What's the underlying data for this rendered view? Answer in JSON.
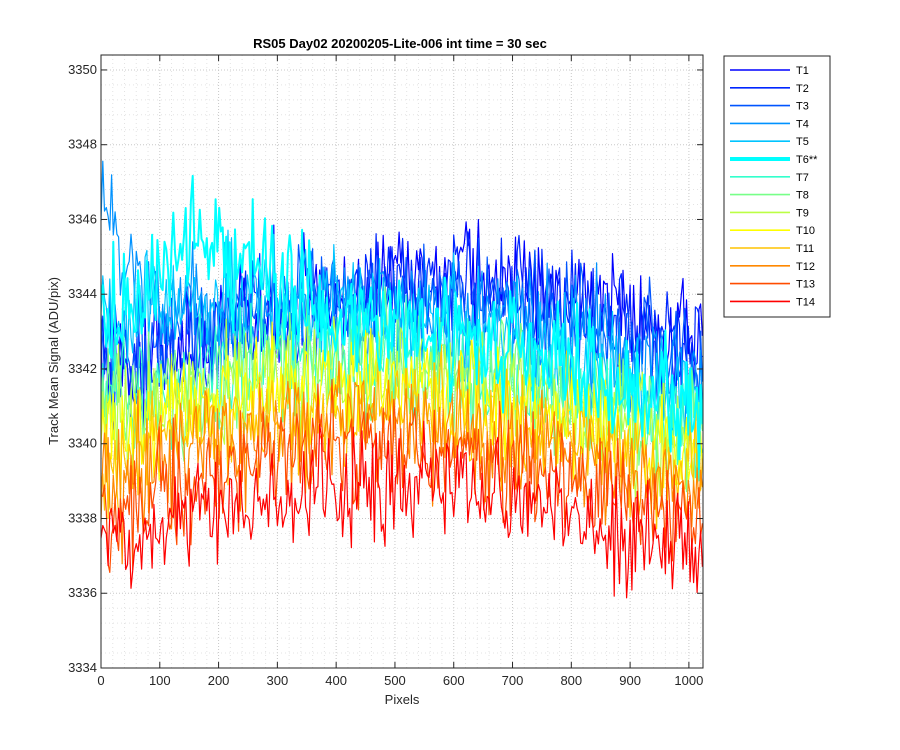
{
  "chart_data": {
    "type": "line",
    "title": "RS05 Day02 20200205-Lite-006 int time = 30 sec",
    "xlabel": "Pixels",
    "ylabel": "Track Mean Signal (ADU/pix)",
    "xlim": [
      0,
      1024
    ],
    "ylim": [
      3334,
      3350.4
    ],
    "xticks": [
      0,
      100,
      200,
      300,
      400,
      500,
      600,
      700,
      800,
      900,
      1000
    ],
    "yticks": [
      3334,
      3336,
      3338,
      3340,
      3342,
      3344,
      3346,
      3348,
      3350
    ],
    "grid": "on (dotted major and minor)",
    "legend_location": "outside right",
    "series": [
      {
        "name": "T1",
        "color": "#0000ff",
        "mean_profile": [
          {
            "x": 0,
            "y": 3341.8
          },
          {
            "x": 100,
            "y": 3342.3
          },
          {
            "x": 200,
            "y": 3343.0
          },
          {
            "x": 300,
            "y": 3343.6
          },
          {
            "x": 400,
            "y": 3344.0
          },
          {
            "x": 500,
            "y": 3344.3
          },
          {
            "x": 600,
            "y": 3344.4
          },
          {
            "x": 700,
            "y": 3344.3
          },
          {
            "x": 800,
            "y": 3344.0
          },
          {
            "x": 900,
            "y": 3343.5
          },
          {
            "x": 1024,
            "y": 3342.9
          }
        ]
      },
      {
        "name": "T2",
        "color": "#0026ff",
        "mean_profile": [
          {
            "x": 0,
            "y": 3341.9
          },
          {
            "x": 100,
            "y": 3342.4
          },
          {
            "x": 200,
            "y": 3343.0
          },
          {
            "x": 300,
            "y": 3343.5
          },
          {
            "x": 400,
            "y": 3343.9
          },
          {
            "x": 500,
            "y": 3344.1
          },
          {
            "x": 600,
            "y": 3344.2
          },
          {
            "x": 700,
            "y": 3344.0
          },
          {
            "x": 800,
            "y": 3343.7
          },
          {
            "x": 900,
            "y": 3343.2
          },
          {
            "x": 1024,
            "y": 3342.6
          }
        ]
      },
      {
        "name": "T3",
        "color": "#0055ff",
        "mean_profile": [
          {
            "x": 0,
            "y": 3342.3
          },
          {
            "x": 100,
            "y": 3342.7
          },
          {
            "x": 200,
            "y": 3343.1
          },
          {
            "x": 300,
            "y": 3343.5
          },
          {
            "x": 400,
            "y": 3343.8
          },
          {
            "x": 500,
            "y": 3343.9
          },
          {
            "x": 600,
            "y": 3343.9
          },
          {
            "x": 700,
            "y": 3343.7
          },
          {
            "x": 800,
            "y": 3343.3
          },
          {
            "x": 900,
            "y": 3342.8
          },
          {
            "x": 1024,
            "y": 3342.2
          }
        ]
      },
      {
        "name": "T4",
        "color": "#0092ff",
        "mean_profile": [
          {
            "x": 0,
            "y": 3346.3
          },
          {
            "x": 50,
            "y": 3344.8
          },
          {
            "x": 100,
            "y": 3343.9
          },
          {
            "x": 200,
            "y": 3343.5
          },
          {
            "x": 300,
            "y": 3343.5
          },
          {
            "x": 400,
            "y": 3343.6
          },
          {
            "x": 500,
            "y": 3343.6
          },
          {
            "x": 600,
            "y": 3343.5
          },
          {
            "x": 700,
            "y": 3343.2
          },
          {
            "x": 800,
            "y": 3342.8
          },
          {
            "x": 900,
            "y": 3342.3
          },
          {
            "x": 1024,
            "y": 3341.7
          }
        ]
      },
      {
        "name": "T5",
        "color": "#00c4ff",
        "mean_profile": [
          {
            "x": 0,
            "y": 3343.2
          },
          {
            "x": 100,
            "y": 3343.8
          },
          {
            "x": 200,
            "y": 3344.0
          },
          {
            "x": 300,
            "y": 3343.9
          },
          {
            "x": 400,
            "y": 3343.7
          },
          {
            "x": 500,
            "y": 3343.5
          },
          {
            "x": 600,
            "y": 3343.2
          },
          {
            "x": 700,
            "y": 3342.8
          },
          {
            "x": 800,
            "y": 3342.3
          },
          {
            "x": 900,
            "y": 3341.8
          },
          {
            "x": 1024,
            "y": 3341.2
          }
        ]
      },
      {
        "name": "T6**",
        "color": "#00ffff",
        "mean_profile": [
          {
            "x": 0,
            "y": 3343.0
          },
          {
            "x": 100,
            "y": 3344.5
          },
          {
            "x": 150,
            "y": 3345.6
          },
          {
            "x": 200,
            "y": 3345.2
          },
          {
            "x": 300,
            "y": 3344.3
          },
          {
            "x": 400,
            "y": 3343.6
          },
          {
            "x": 500,
            "y": 3343.2
          },
          {
            "x": 600,
            "y": 3342.8
          },
          {
            "x": 700,
            "y": 3342.4
          },
          {
            "x": 800,
            "y": 3341.9
          },
          {
            "x": 900,
            "y": 3341.4
          },
          {
            "x": 1024,
            "y": 3340.8
          }
        ]
      },
      {
        "name": "T7",
        "color": "#33ffcc",
        "mean_profile": [
          {
            "x": 0,
            "y": 3341.0
          },
          {
            "x": 100,
            "y": 3341.6
          },
          {
            "x": 200,
            "y": 3342.0
          },
          {
            "x": 300,
            "y": 3342.2
          },
          {
            "x": 400,
            "y": 3342.3
          },
          {
            "x": 500,
            "y": 3342.3
          },
          {
            "x": 600,
            "y": 3342.1
          },
          {
            "x": 700,
            "y": 3341.8
          },
          {
            "x": 800,
            "y": 3341.4
          },
          {
            "x": 900,
            "y": 3340.9
          },
          {
            "x": 1024,
            "y": 3340.3
          }
        ]
      },
      {
        "name": "T8",
        "color": "#77ff88",
        "mean_profile": [
          {
            "x": 0,
            "y": 3340.7
          },
          {
            "x": 100,
            "y": 3341.3
          },
          {
            "x": 200,
            "y": 3341.7
          },
          {
            "x": 300,
            "y": 3342.0
          },
          {
            "x": 400,
            "y": 3342.1
          },
          {
            "x": 500,
            "y": 3342.1
          },
          {
            "x": 600,
            "y": 3341.9
          },
          {
            "x": 700,
            "y": 3341.6
          },
          {
            "x": 800,
            "y": 3341.2
          },
          {
            "x": 900,
            "y": 3340.7
          },
          {
            "x": 1024,
            "y": 3340.1
          }
        ]
      },
      {
        "name": "T9",
        "color": "#bbff44",
        "mean_profile": [
          {
            "x": 0,
            "y": 3340.4
          },
          {
            "x": 100,
            "y": 3341.0
          },
          {
            "x": 200,
            "y": 3341.5
          },
          {
            "x": 300,
            "y": 3341.8
          },
          {
            "x": 400,
            "y": 3341.9
          },
          {
            "x": 500,
            "y": 3341.9
          },
          {
            "x": 600,
            "y": 3341.7
          },
          {
            "x": 700,
            "y": 3341.4
          },
          {
            "x": 800,
            "y": 3341.0
          },
          {
            "x": 900,
            "y": 3340.5
          },
          {
            "x": 1024,
            "y": 3339.9
          }
        ]
      },
      {
        "name": "T10",
        "color": "#ffff00",
        "mean_profile": [
          {
            "x": 0,
            "y": 3340.0
          },
          {
            "x": 100,
            "y": 3340.7
          },
          {
            "x": 200,
            "y": 3341.2
          },
          {
            "x": 300,
            "y": 3341.5
          },
          {
            "x": 400,
            "y": 3341.6
          },
          {
            "x": 500,
            "y": 3341.6
          },
          {
            "x": 600,
            "y": 3341.4
          },
          {
            "x": 700,
            "y": 3341.1
          },
          {
            "x": 800,
            "y": 3340.7
          },
          {
            "x": 900,
            "y": 3340.2
          },
          {
            "x": 1024,
            "y": 3339.6
          }
        ]
      },
      {
        "name": "T11",
        "color": "#ffc400",
        "mean_profile": [
          {
            "x": 0,
            "y": 3339.4
          },
          {
            "x": 100,
            "y": 3340.1
          },
          {
            "x": 200,
            "y": 3340.6
          },
          {
            "x": 300,
            "y": 3340.9
          },
          {
            "x": 400,
            "y": 3341.1
          },
          {
            "x": 500,
            "y": 3341.1
          },
          {
            "x": 600,
            "y": 3340.9
          },
          {
            "x": 700,
            "y": 3340.6
          },
          {
            "x": 800,
            "y": 3340.2
          },
          {
            "x": 900,
            "y": 3339.7
          },
          {
            "x": 1024,
            "y": 3339.1
          }
        ]
      },
      {
        "name": "T12",
        "color": "#ff8800",
        "mean_profile": [
          {
            "x": 0,
            "y": 3338.8
          },
          {
            "x": 100,
            "y": 3339.5
          },
          {
            "x": 200,
            "y": 3340.0
          },
          {
            "x": 300,
            "y": 3340.4
          },
          {
            "x": 400,
            "y": 3340.6
          },
          {
            "x": 500,
            "y": 3340.6
          },
          {
            "x": 600,
            "y": 3340.4
          },
          {
            "x": 700,
            "y": 3340.1
          },
          {
            "x": 800,
            "y": 3339.7
          },
          {
            "x": 900,
            "y": 3339.2
          },
          {
            "x": 1024,
            "y": 3338.6
          }
        ]
      },
      {
        "name": "T13",
        "color": "#ff4c00",
        "mean_profile": [
          {
            "x": 0,
            "y": 3337.9
          },
          {
            "x": 100,
            "y": 3338.6
          },
          {
            "x": 200,
            "y": 3339.2
          },
          {
            "x": 300,
            "y": 3339.6
          },
          {
            "x": 400,
            "y": 3339.8
          },
          {
            "x": 500,
            "y": 3339.9
          },
          {
            "x": 600,
            "y": 3339.7
          },
          {
            "x": 700,
            "y": 3339.4
          },
          {
            "x": 800,
            "y": 3339.0
          },
          {
            "x": 900,
            "y": 3338.5
          },
          {
            "x": 1024,
            "y": 3337.9
          }
        ]
      },
      {
        "name": "T14",
        "color": "#ff0000",
        "mean_profile": [
          {
            "x": 0,
            "y": 3337.2
          },
          {
            "x": 100,
            "y": 3337.8
          },
          {
            "x": 200,
            "y": 3338.3
          },
          {
            "x": 300,
            "y": 3338.7
          },
          {
            "x": 400,
            "y": 3338.9
          },
          {
            "x": 500,
            "y": 3339.0
          },
          {
            "x": 600,
            "y": 3338.8
          },
          {
            "x": 700,
            "y": 3338.5
          },
          {
            "x": 800,
            "y": 3338.1
          },
          {
            "x": 900,
            "y": 3337.6
          },
          {
            "x": 1024,
            "y": 3337.0
          }
        ]
      }
    ],
    "highlighted_series": "T6**"
  }
}
